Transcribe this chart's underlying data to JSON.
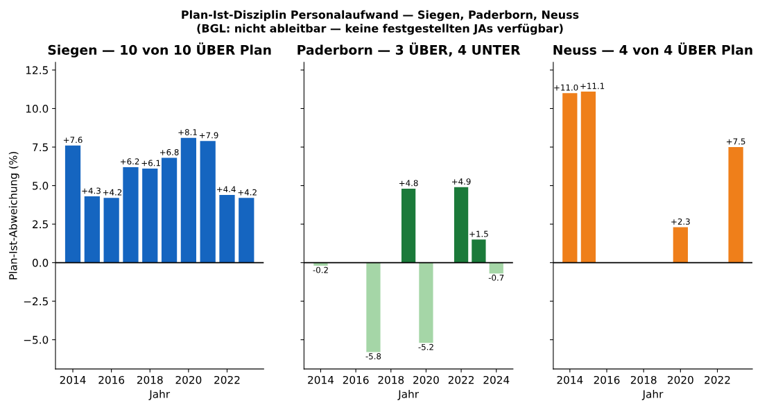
{
  "chart_data": [
    {
      "type": "bar",
      "title": "Siegen — 10 von 10 ÜBER Plan",
      "xlabel": "Jahr",
      "ylabel": "Plan-Ist-Abweichung (%)",
      "annotations": [
        "Plan-Ist-Disziplin Personalaufwand — Siegen, Paderborn, Neuss",
        "(BGL: nicht ableitbar — keine festgestellten JAs verfügbar)"
      ],
      "x": [
        2014,
        2015,
        2016,
        2017,
        2018,
        2019,
        2020,
        2021,
        2022,
        2023
      ],
      "values": [
        7.6,
        4.3,
        4.2,
        6.2,
        6.1,
        6.8,
        8.1,
        7.9,
        4.4,
        4.2
      ],
      "value_labels": [
        "+7.6",
        "+4.3",
        "+4.2",
        "+6.2",
        "+6.1",
        "+6.8",
        "+8.1",
        "+7.9",
        "+4.4",
        "+4.2"
      ],
      "colors": [
        "#1565c0",
        "#1565c0",
        "#1565c0",
        "#1565c0",
        "#1565c0",
        "#1565c0",
        "#1565c0",
        "#1565c0",
        "#1565c0",
        "#1565c0"
      ],
      "xlim": [
        2013.1,
        2023.9
      ],
      "xticks": [
        2014,
        2016,
        2018,
        2020,
        2022
      ],
      "ylim": [
        -6.9,
        13.0
      ],
      "yticks": [
        {
          "value": -5,
          "label": "−5.0"
        },
        {
          "value": -2.5,
          "label": "−2.5"
        },
        {
          "value": 0,
          "label": "0.0"
        },
        {
          "value": 2.5,
          "label": "2.5"
        },
        {
          "value": 5,
          "label": "5.0"
        },
        {
          "value": 7.5,
          "label": "7.5"
        },
        {
          "value": 10,
          "label": "10.0"
        },
        {
          "value": 12.5,
          "label": "12.5"
        }
      ],
      "ref_lines": [
        {
          "axis": "y",
          "value": 0,
          "color": "#000000"
        }
      ]
    },
    {
      "type": "bar",
      "title": "Paderborn — 3 ÜBER, 4 UNTER",
      "xlabel": "Jahr",
      "tick_labels": "x",
      "x": [
        2014,
        2017,
        2019,
        2020,
        2022,
        2023,
        2024
      ],
      "values": [
        -0.2,
        -5.8,
        4.8,
        -5.2,
        4.9,
        1.5,
        -0.7
      ],
      "value_labels": [
        "-0.2",
        "-5.8",
        "+4.8",
        "-5.2",
        "+4.9",
        "+1.5",
        "-0.7"
      ],
      "colors": [
        "#a5d6a7",
        "#a5d6a7",
        "#1b7a3a",
        "#a5d6a7",
        "#1b7a3a",
        "#1b7a3a",
        "#a5d6a7"
      ],
      "xlim": [
        2013.05,
        2024.95
      ],
      "xticks": [
        2014,
        2016,
        2018,
        2020,
        2022,
        2024
      ],
      "ylim": [
        -6.9,
        13.0
      ],
      "yticks": [
        -5,
        -2.5,
        0,
        2.5,
        5,
        7.5,
        10,
        12.5
      ],
      "ref_lines": [
        {
          "axis": "y",
          "value": 0,
          "color": "#000000"
        }
      ]
    },
    {
      "type": "bar",
      "title": "Neuss — 4 von 4 ÜBER Plan",
      "xlabel": "Jahr",
      "tick_labels": "x",
      "x": [
        2014,
        2015,
        2020,
        2023
      ],
      "values": [
        11.0,
        11.1,
        2.3,
        7.5
      ],
      "value_labels": [
        "+11.0",
        "+11.1",
        "+2.3",
        "+7.5"
      ],
      "colors": [
        "#ef7f1a",
        "#ef7f1a",
        "#ef7f1a",
        "#ef7f1a"
      ],
      "xlim": [
        2013.1,
        2023.9
      ],
      "xticks": [
        2014,
        2016,
        2018,
        2020,
        2022
      ],
      "ylim": [
        -6.9,
        13.0
      ],
      "yticks": [
        -5,
        -2.5,
        0,
        2.5,
        5,
        7.5,
        10,
        12.5
      ],
      "ref_lines": [
        {
          "axis": "y",
          "value": 0,
          "color": "#000000"
        }
      ]
    }
  ]
}
